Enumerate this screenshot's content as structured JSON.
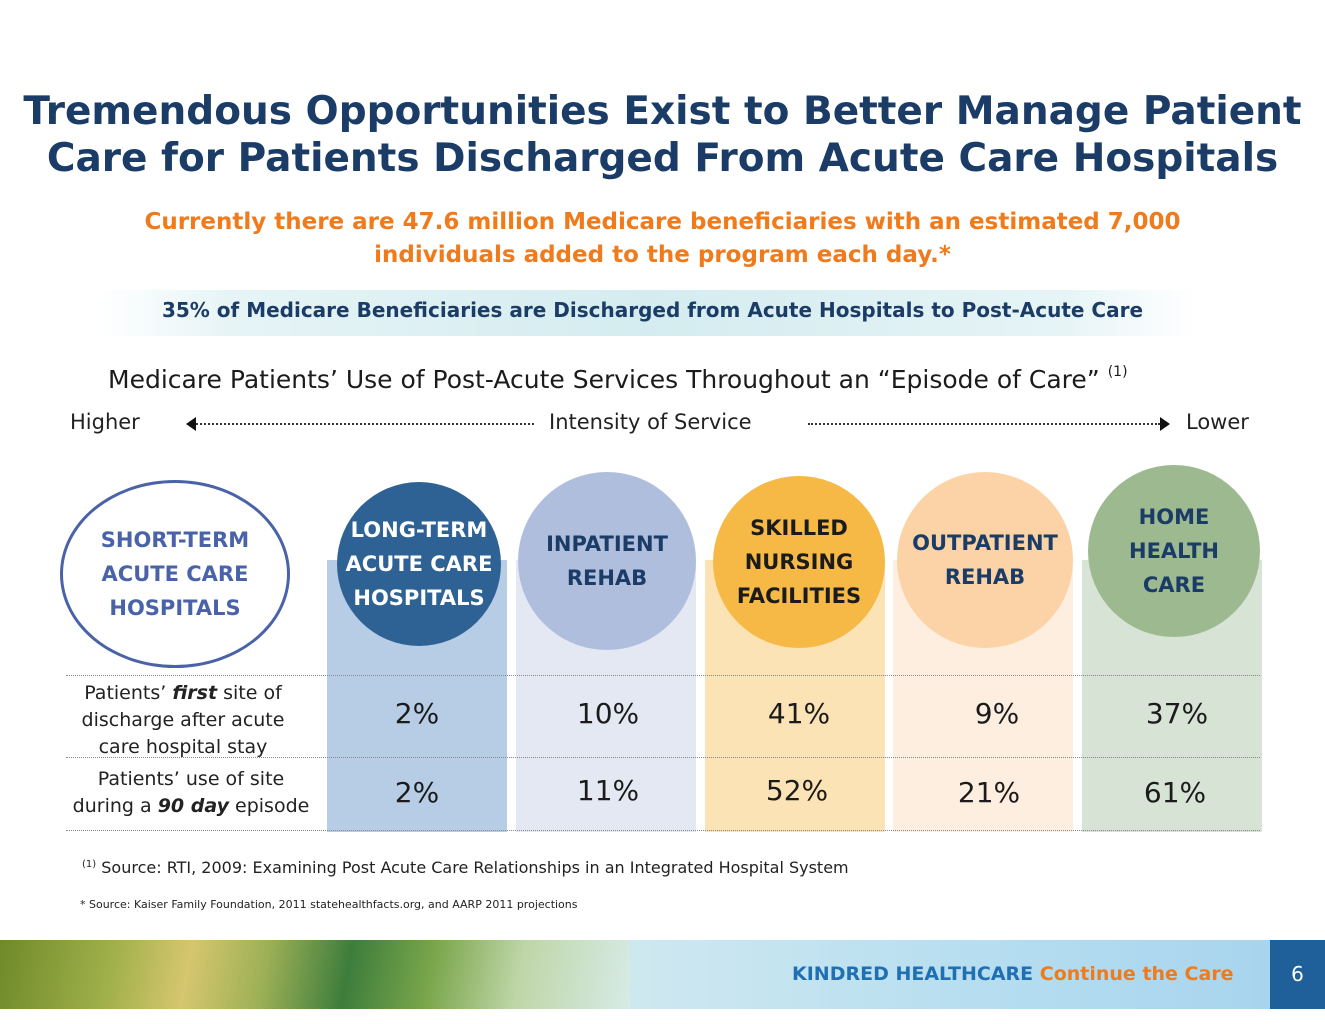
{
  "slide": {
    "title_line1": "Tremendous Opportunities Exist to Better Manage Patient",
    "title_line2": "Care for Patients Discharged From Acute Care Hospitals",
    "subtitle_line1": "Currently there are 47.6 million Medicare beneficiaries with an estimated 7,000",
    "subtitle_line2": "individuals added to the program each day.*",
    "banner": "35% of Medicare Beneficiaries are Discharged from Acute Hospitals to Post-Acute Care",
    "chart_title": "Medicare Patients’ Use of Post-Acute Services Throughout an “Episode of Care”",
    "chart_title_ref": "(1)",
    "axis": {
      "left": "Higher",
      "center": "Intensity of Service",
      "right": "Lower"
    }
  },
  "origin": {
    "lines": [
      "SHORT-TERM",
      "ACUTE CARE",
      "HOSPITALS"
    ]
  },
  "settings": [
    {
      "lines": [
        "LONG-TERM",
        "ACUTE CARE",
        "HOSPITALS"
      ],
      "first": "2%",
      "ninety": "2%",
      "circle": "#2f6294",
      "column": "#b7cde6",
      "text": "#ffffff"
    },
    {
      "lines": [
        "INPATIENT",
        "REHAB"
      ],
      "first": "10%",
      "ninety": "11%",
      "circle": "#b0bedd",
      "column": "#e3e8f3",
      "text": "#1b3c66"
    },
    {
      "lines": [
        "SKILLED",
        "NURSING",
        "FACILITIES"
      ],
      "first": "41%",
      "ninety": "52%",
      "circle": "#f6b946",
      "column": "#fbe3b5",
      "text": "#1b1b1b"
    },
    {
      "lines": [
        "OUTPATIENT",
        "REHAB"
      ],
      "first": "9%",
      "ninety": "21%",
      "circle": "#fcd3a6",
      "column": "#fdeee0",
      "text": "#1b3c66"
    },
    {
      "lines": [
        "HOME",
        "HEALTH",
        "CARE"
      ],
      "first": "37%",
      "ninety": "61%",
      "circle": "#9db98f",
      "column": "#d7e3d5",
      "text": "#1b3c66"
    }
  ],
  "rows": {
    "first_pre": "Patients’ ",
    "first_em": "first",
    "first_post": " site of",
    "first_line2": "discharge after acute",
    "first_line3": "care hospital stay",
    "ninety_line1": "Patients’ use of site",
    "ninety_pre": "during a ",
    "ninety_em": "90 day",
    "ninety_post": " episode"
  },
  "footnotes": {
    "ref": "(1)",
    "source1": " Source: RTI, 2009: Examining Post Acute Care Relationships in an Integrated Hospital System",
    "source2": "* Source: Kaiser Family Foundation, 2011 statehealthfacts.org, and AARP 2011 projections"
  },
  "footer": {
    "brand": "KINDRED HEALTHCARE",
    "tagline": "Continue the Care",
    "page": "6"
  }
}
